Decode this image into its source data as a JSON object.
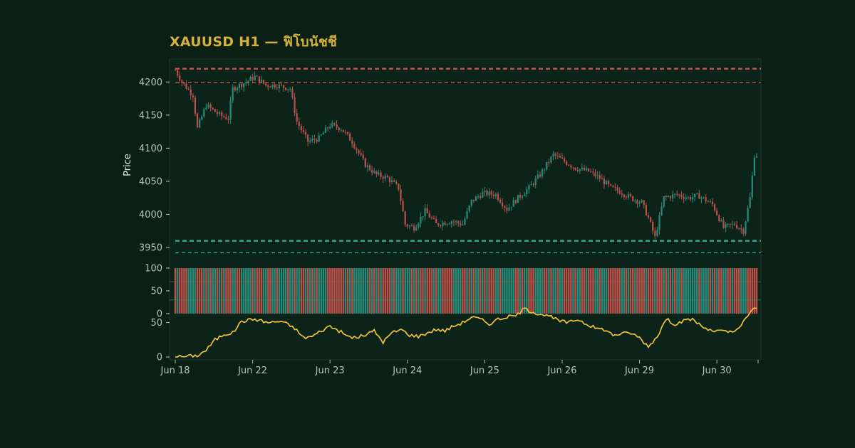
{
  "chart_data": {
    "type": "candlestick",
    "title": "XAUUSD H1 — ฟิโบนัชชี",
    "ylabel": "Price",
    "x_tick_labels": [
      "Jun 18",
      "Jun 22",
      "Jun 23",
      "Jun 24",
      "Jun 25",
      "Jun 26",
      "Jun 29",
      "Jun 30"
    ],
    "price_panel": {
      "ylim": [
        3935,
        4225
      ],
      "yticks": [
        3950,
        4000,
        4050,
        4100,
        4150,
        4200
      ],
      "anchors": [
        [
          0,
          4218
        ],
        [
          3,
          4200
        ],
        [
          8,
          4180
        ],
        [
          10,
          4130
        ],
        [
          14,
          4165
        ],
        [
          20,
          4150
        ],
        [
          24,
          4145
        ],
        [
          26,
          4190
        ],
        [
          32,
          4200
        ],
        [
          36,
          4208
        ],
        [
          41,
          4195
        ],
        [
          46,
          4195
        ],
        [
          52,
          4190
        ],
        [
          55,
          4140
        ],
        [
          60,
          4110
        ],
        [
          65,
          4115
        ],
        [
          70,
          4135
        ],
        [
          75,
          4130
        ],
        [
          80,
          4110
        ],
        [
          86,
          4075
        ],
        [
          91,
          4060
        ],
        [
          96,
          4055
        ],
        [
          101,
          4040
        ],
        [
          104,
          3985
        ],
        [
          108,
          3980
        ],
        [
          113,
          4005
        ],
        [
          118,
          3985
        ],
        [
          125,
          3990
        ],
        [
          130,
          3985
        ],
        [
          134,
          4020
        ],
        [
          139,
          4032
        ],
        [
          145,
          4030
        ],
        [
          150,
          4008
        ],
        [
          155,
          4025
        ],
        [
          160,
          4040
        ],
        [
          165,
          4060
        ],
        [
          171,
          4090
        ],
        [
          176,
          4080
        ],
        [
          181,
          4070
        ],
        [
          187,
          4065
        ],
        [
          192,
          4055
        ],
        [
          197,
          4040
        ],
        [
          201,
          4035
        ],
        [
          206,
          4025
        ],
        [
          211,
          4018
        ],
        [
          214,
          3995
        ],
        [
          217,
          3965
        ],
        [
          221,
          4025
        ],
        [
          227,
          4030
        ],
        [
          232,
          4025
        ],
        [
          237,
          4028
        ],
        [
          243,
          4015
        ],
        [
          248,
          3980
        ],
        [
          253,
          3985
        ],
        [
          257,
          3975
        ],
        [
          260,
          4025
        ],
        [
          262,
          4090
        ]
      ],
      "hlines": [
        {
          "value": 4220,
          "color": "#c4584e",
          "style": "dashed-thick"
        },
        {
          "value": 4199,
          "color": "#c4584e",
          "style": "dashed"
        },
        {
          "value": 3960,
          "color": "#2fa89a",
          "style": "dashed-thick"
        },
        {
          "value": 3942,
          "color": "#2fa89a",
          "style": "dashed"
        }
      ]
    },
    "bar_panel": {
      "ylim": [
        0,
        100
      ],
      "yticks": [
        0,
        50,
        100
      ],
      "colors": {
        "up": "#2a8a78",
        "down": "#b9504a"
      }
    },
    "line_panel": {
      "ylim": [
        0,
        100
      ],
      "yticks": [
        0,
        50
      ],
      "color": "#f0c13d",
      "anchors": [
        [
          0,
          0
        ],
        [
          5,
          1
        ],
        [
          10,
          2
        ],
        [
          14,
          10
        ],
        [
          18,
          25
        ],
        [
          22,
          33
        ],
        [
          26,
          35
        ],
        [
          30,
          52
        ],
        [
          36,
          55
        ],
        [
          42,
          50
        ],
        [
          48,
          52
        ],
        [
          54,
          42
        ],
        [
          58,
          28
        ],
        [
          62,
          30
        ],
        [
          66,
          38
        ],
        [
          70,
          45
        ],
        [
          74,
          38
        ],
        [
          78,
          30
        ],
        [
          82,
          28
        ],
        [
          86,
          32
        ],
        [
          90,
          38
        ],
        [
          94,
          22
        ],
        [
          98,
          35
        ],
        [
          102,
          40
        ],
        [
          106,
          32
        ],
        [
          110,
          30
        ],
        [
          114,
          35
        ],
        [
          118,
          40
        ],
        [
          122,
          38
        ],
        [
          126,
          45
        ],
        [
          130,
          50
        ],
        [
          134,
          58
        ],
        [
          138,
          55
        ],
        [
          142,
          48
        ],
        [
          146,
          55
        ],
        [
          150,
          58
        ],
        [
          154,
          60
        ],
        [
          158,
          70
        ],
        [
          162,
          65
        ],
        [
          166,
          62
        ],
        [
          170,
          58
        ],
        [
          174,
          52
        ],
        [
          178,
          50
        ],
        [
          182,
          55
        ],
        [
          186,
          48
        ],
        [
          190,
          42
        ],
        [
          194,
          40
        ],
        [
          198,
          32
        ],
        [
          202,
          34
        ],
        [
          206,
          35
        ],
        [
          210,
          28
        ],
        [
          214,
          15
        ],
        [
          218,
          30
        ],
        [
          222,
          55
        ],
        [
          226,
          48
        ],
        [
          230,
          52
        ],
        [
          234,
          55
        ],
        [
          238,
          45
        ],
        [
          242,
          38
        ],
        [
          246,
          38
        ],
        [
          250,
          36
        ],
        [
          254,
          38
        ],
        [
          258,
          55
        ],
        [
          262,
          72
        ]
      ]
    },
    "grid": false,
    "legend": "none"
  },
  "colors": {
    "bg": "#0b1f15",
    "up": "#2a8a78",
    "down": "#b9504a",
    "title": "#d4b23c"
  }
}
